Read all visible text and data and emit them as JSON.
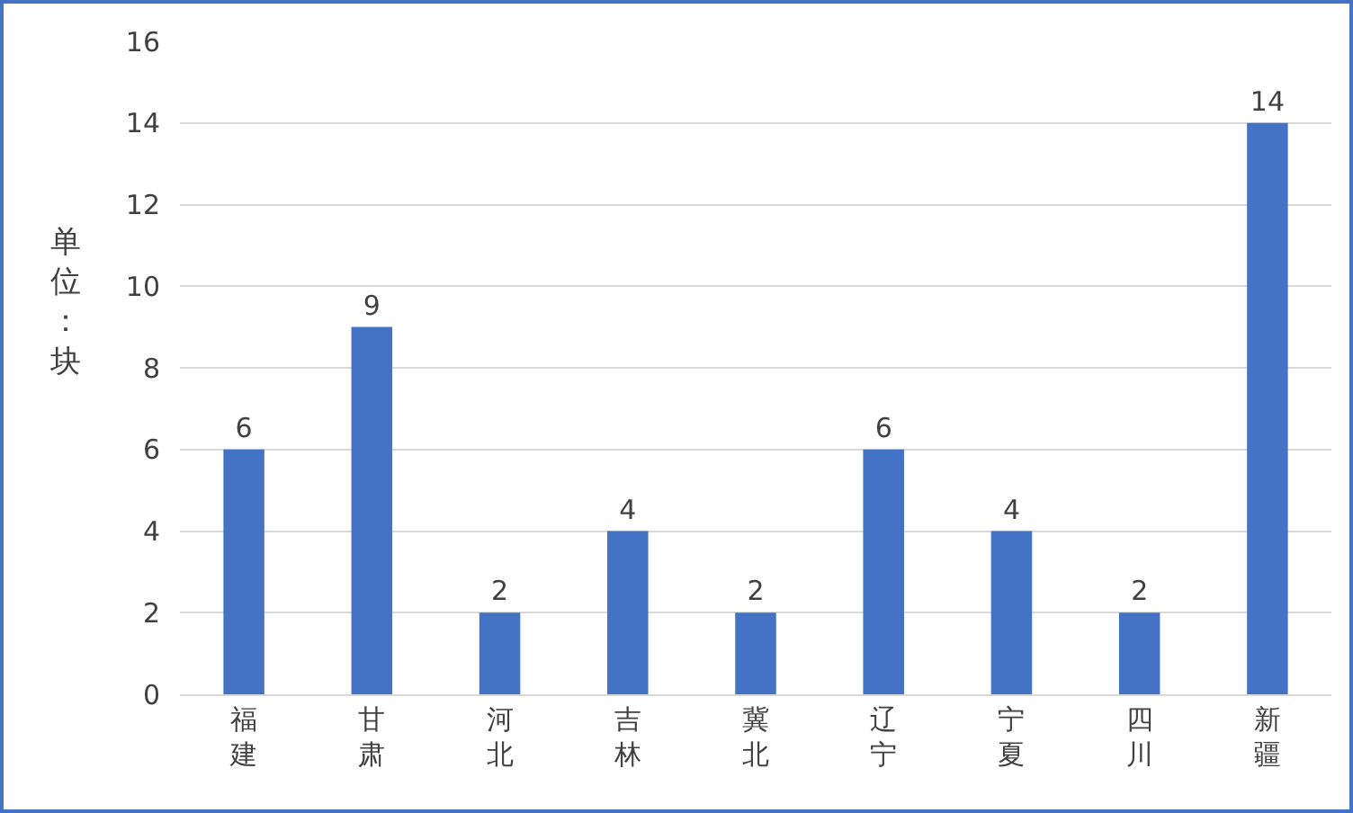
{
  "chart_data": {
    "type": "bar",
    "ylabel": "单位：块",
    "categories": [
      "福建",
      "甘肃",
      "河北",
      "吉林",
      "冀北",
      "辽宁",
      "宁夏",
      "四川",
      "新疆"
    ],
    "values": [
      6,
      9,
      2,
      4,
      2,
      6,
      4,
      2,
      14
    ],
    "color": "#4472c4",
    "ylim": [
      0,
      16
    ],
    "yticks": [
      0,
      2,
      4,
      6,
      8,
      10,
      12,
      14,
      16
    ],
    "grid": "y",
    "data_labels": true
  }
}
